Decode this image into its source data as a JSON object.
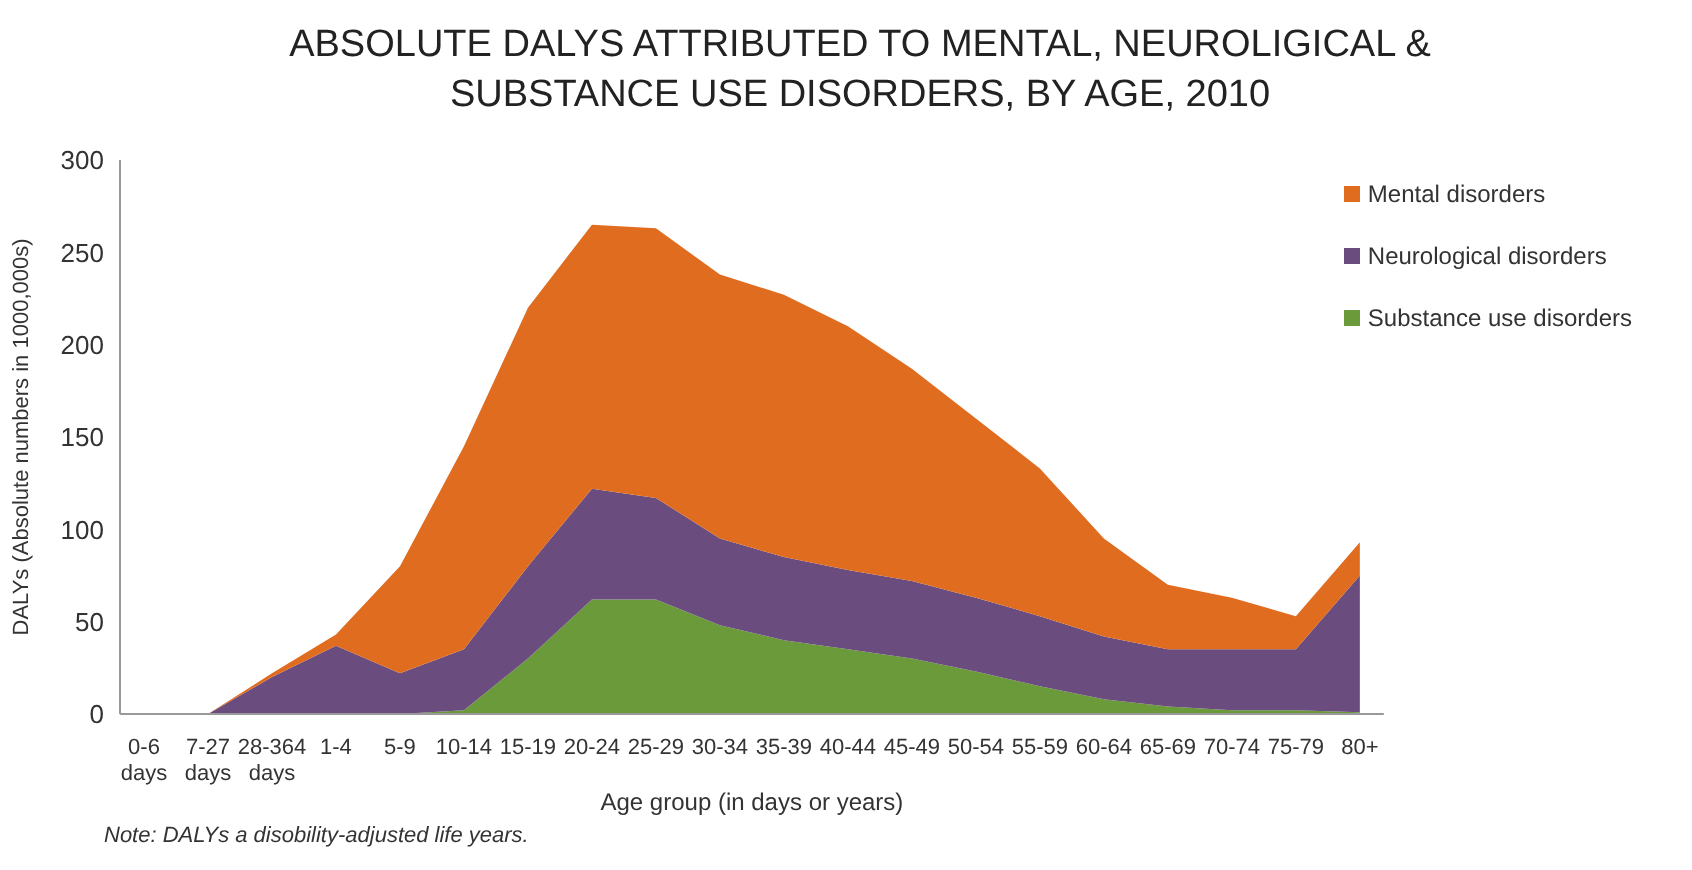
{
  "chart_data": {
    "type": "area",
    "title": "ABSOLUTE DALYS ATTRIBUTED TO MENTAL, NEUROLIGICAL & SUBSTANCE USE DISORDERS, BY AGE, 2010",
    "xlabel": "Age group (in days or years)",
    "ylabel": "DALYs (Absolute numbers in 1000,000s)",
    "annotations": [
      "Note: DALYs a disobility-adjusted life years."
    ],
    "categories": [
      "0-6 days",
      "7-27 days",
      "28-364 days",
      "1-4",
      "5-9",
      "10-14",
      "15-19",
      "20-24",
      "25-29",
      "30-34",
      "35-39",
      "40-44",
      "45-49",
      "50-54",
      "55-59",
      "60-64",
      "65-69",
      "70-74",
      "75-79",
      "80+"
    ],
    "stacked": true,
    "ylim": [
      0,
      300
    ],
    "yticks": [
      0,
      50,
      100,
      150,
      200,
      250,
      300
    ],
    "grid": false,
    "legend": "top right",
    "series": [
      {
        "name": "Substance use disorders",
        "color": "#6b9a3a",
        "values": [
          0,
          0,
          0,
          0,
          0,
          2,
          30,
          62,
          62,
          48,
          40,
          35,
          30,
          23,
          15,
          8,
          4,
          2,
          2,
          1
        ]
      },
      {
        "name": "Neurological disorders",
        "color": "#6a4c7e",
        "values": [
          0,
          0,
          20,
          37,
          22,
          33,
          50,
          60,
          55,
          47,
          45,
          43,
          42,
          40,
          38,
          34,
          31,
          33,
          33,
          74
        ]
      },
      {
        "name": "Mental disorders",
        "color": "#e06c1f",
        "values": [
          0,
          0,
          2,
          6,
          58,
          110,
          140,
          143,
          146,
          143,
          142,
          132,
          115,
          97,
          80,
          53,
          35,
          28,
          18,
          18
        ]
      }
    ]
  }
}
